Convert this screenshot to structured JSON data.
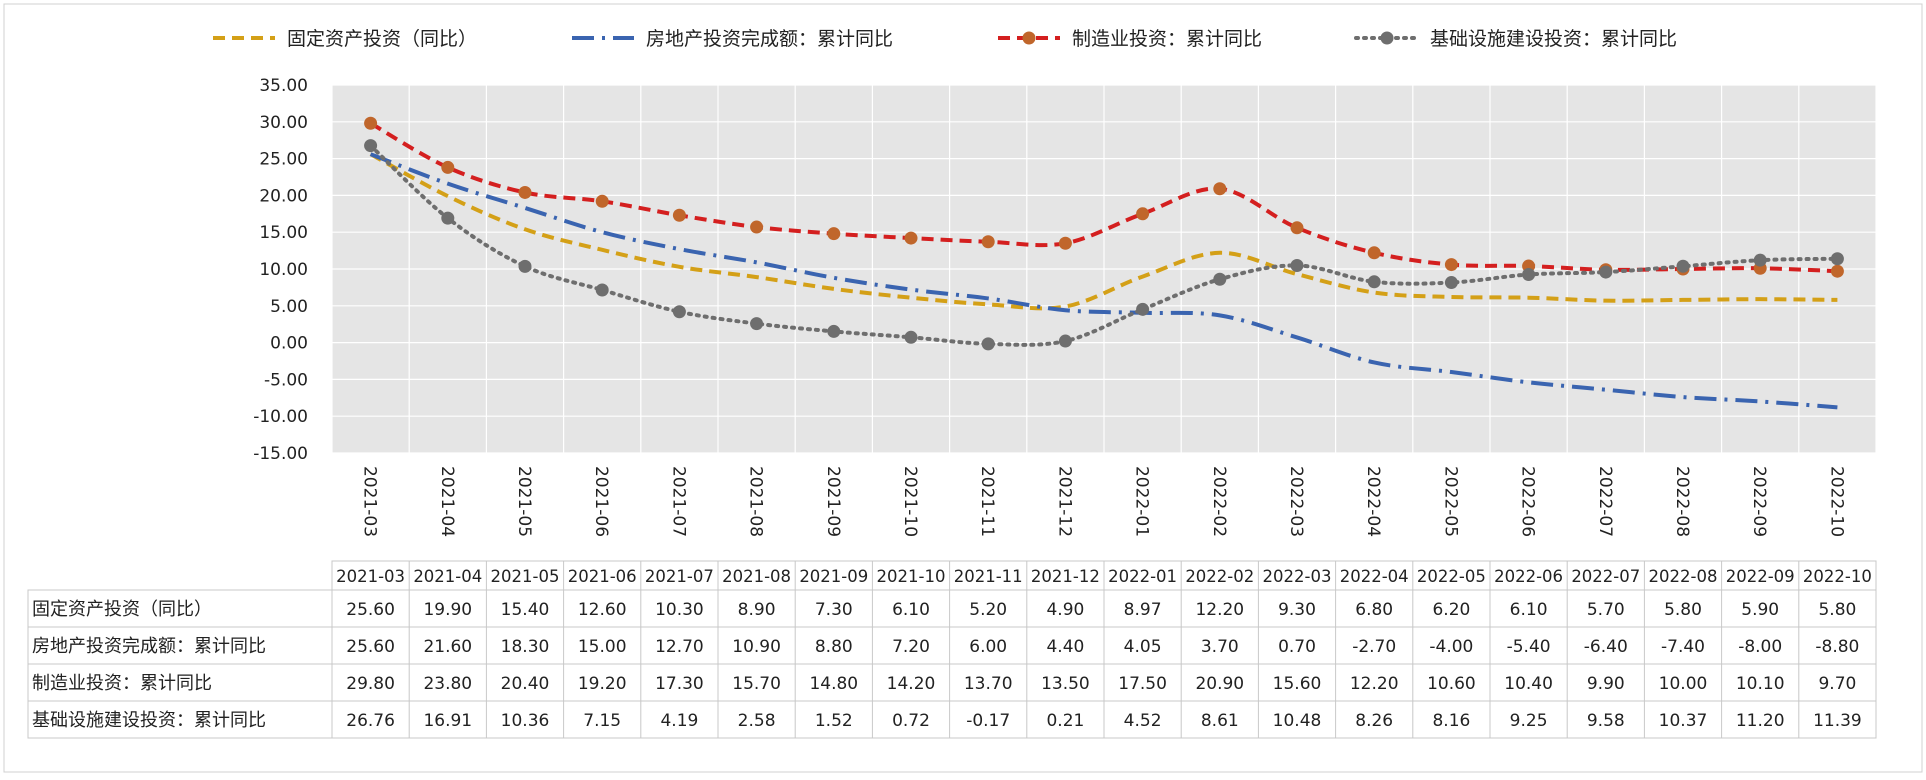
{
  "chart_data": {
    "type": "line",
    "title": "",
    "xlabel": "",
    "ylabel": "",
    "ylim": [
      -15,
      35
    ],
    "yticks": [
      "35.00",
      "30.00",
      "25.00",
      "20.00",
      "15.00",
      "10.00",
      "5.00",
      "0.00",
      "-5.00",
      "-10.00",
      "-15.00"
    ],
    "grid": true,
    "legend_position": "top",
    "categories": [
      "2021-03",
      "2021-04",
      "2021-05",
      "2021-06",
      "2021-07",
      "2021-08",
      "2021-09",
      "2021-10",
      "2021-11",
      "2021-12",
      "2022-01",
      "2022-02",
      "2022-03",
      "2022-04",
      "2022-05",
      "2022-06",
      "2022-07",
      "2022-08",
      "2022-09",
      "2022-10"
    ],
    "series": [
      {
        "name": "固定资产投资（同比）",
        "color": "#D4A017",
        "dash": "dashed",
        "marker": false,
        "values": [
          25.6,
          19.9,
          15.4,
          12.6,
          10.3,
          8.9,
          7.3,
          6.1,
          5.2,
          4.9,
          8.97,
          12.2,
          9.3,
          6.8,
          6.2,
          6.1,
          5.7,
          5.8,
          5.9,
          5.8
        ],
        "labels": [
          "25.60",
          "19.90",
          "15.40",
          "12.60",
          "10.30",
          "8.90",
          "7.30",
          "6.10",
          "5.20",
          "4.90",
          "8.97",
          "12.20",
          "9.30",
          "6.80",
          "6.20",
          "6.10",
          "5.70",
          "5.80",
          "5.90",
          "5.80"
        ]
      },
      {
        "name": "房地产投资完成额：累计同比",
        "color": "#3A64B0",
        "dash": "dashdot",
        "marker": false,
        "values": [
          25.6,
          21.6,
          18.3,
          15.0,
          12.7,
          10.9,
          8.8,
          7.2,
          6.0,
          4.4,
          4.05,
          3.7,
          0.7,
          -2.7,
          -4.0,
          -5.4,
          -6.4,
          -7.4,
          -8.0,
          -8.8
        ],
        "labels": [
          "25.60",
          "21.60",
          "18.30",
          "15.00",
          "12.70",
          "10.90",
          "8.80",
          "7.20",
          "6.00",
          "4.40",
          "4.05",
          "3.70",
          "0.70",
          "-2.70",
          "-4.00",
          "-5.40",
          "-6.40",
          "-7.40",
          "-8.00",
          "-8.80"
        ]
      },
      {
        "name": "制造业投资：累计同比",
        "color": "#D41F1F",
        "marker_color": "#C0662B",
        "dash": "dashed",
        "marker": true,
        "values": [
          29.8,
          23.8,
          20.4,
          19.2,
          17.3,
          15.7,
          14.8,
          14.2,
          13.7,
          13.5,
          17.5,
          20.9,
          15.6,
          12.2,
          10.6,
          10.4,
          9.9,
          10.0,
          10.1,
          9.7
        ],
        "labels": [
          "29.80",
          "23.80",
          "20.40",
          "19.20",
          "17.30",
          "15.70",
          "14.80",
          "14.20",
          "13.70",
          "13.50",
          "17.50",
          "20.90",
          "15.60",
          "12.20",
          "10.60",
          "10.40",
          "9.90",
          "10.00",
          "10.10",
          "9.70"
        ]
      },
      {
        "name": "基础设施建设投资：累计同比",
        "color": "#6E6E6E",
        "dash": "dotted",
        "marker": true,
        "values": [
          26.76,
          16.91,
          10.36,
          7.15,
          4.19,
          2.58,
          1.52,
          0.72,
          -0.17,
          0.21,
          4.52,
          8.61,
          10.48,
          8.26,
          8.16,
          9.25,
          9.58,
          10.37,
          11.2,
          11.39
        ],
        "labels": [
          "26.76",
          "16.91",
          "10.36",
          "7.15",
          "4.19",
          "2.58",
          "1.52",
          "0.72",
          "-0.17",
          "0.21",
          "4.52",
          "8.61",
          "10.48",
          "8.26",
          "8.16",
          "9.25",
          "9.58",
          "10.37",
          "11.20",
          "11.39"
        ]
      }
    ]
  }
}
